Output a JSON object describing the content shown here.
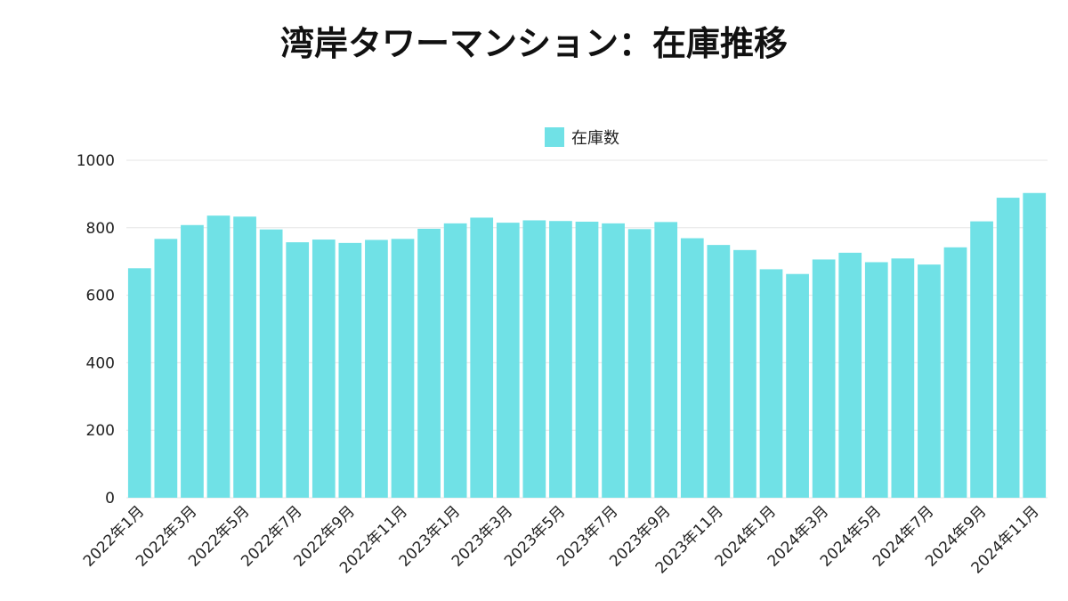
{
  "colors": {
    "bar": "#70e1e6",
    "grid": "#e6e6e6",
    "text": "#222222"
  },
  "chart_data": {
    "type": "bar",
    "title": "湾岸タワーマンション：在庫推移",
    "xlabel": "",
    "ylabel": "",
    "ylim": [
      0,
      1000
    ],
    "yticks": [
      0,
      200,
      400,
      600,
      800,
      1000
    ],
    "grid": true,
    "legend_position": "top-center",
    "series": [
      {
        "name": "在庫数",
        "values": [
          680,
          767,
          808,
          836,
          833,
          795,
          757,
          765,
          755,
          764,
          767,
          797,
          813,
          830,
          815,
          822,
          820,
          818,
          813,
          796,
          817,
          769,
          749,
          734,
          677,
          663,
          706,
          726,
          698,
          709,
          691,
          742,
          819,
          889,
          903
        ]
      }
    ],
    "categories": [
      "2022年1月",
      "2022年2月",
      "2022年3月",
      "2022年4月",
      "2022年5月",
      "2022年6月",
      "2022年7月",
      "2022年8月",
      "2022年9月",
      "2022年10月",
      "2022年11月",
      "2022年12月",
      "2023年1月",
      "2023年2月",
      "2023年3月",
      "2023年4月",
      "2023年5月",
      "2023年6月",
      "2023年7月",
      "2023年8月",
      "2023年9月",
      "2023年10月",
      "2023年11月",
      "2023年12月",
      "2024年1月",
      "2024年2月",
      "2024年3月",
      "2024年4月",
      "2024年5月",
      "2024年6月",
      "2024年7月",
      "2024年8月",
      "2024年9月",
      "2024年10月",
      "2024年11月"
    ],
    "visible_tick_labels": [
      "2022年1月",
      "2022年3月",
      "2022年5月",
      "2022年7月",
      "2022年9月",
      "2022年11月",
      "2023年1月",
      "2023年3月",
      "2023年5月",
      "2023年7月",
      "2023年9月",
      "2023年11月",
      "2024年1月",
      "2024年3月",
      "2024年5月",
      "2024年7月",
      "2024年9月",
      "2024年11月"
    ]
  }
}
